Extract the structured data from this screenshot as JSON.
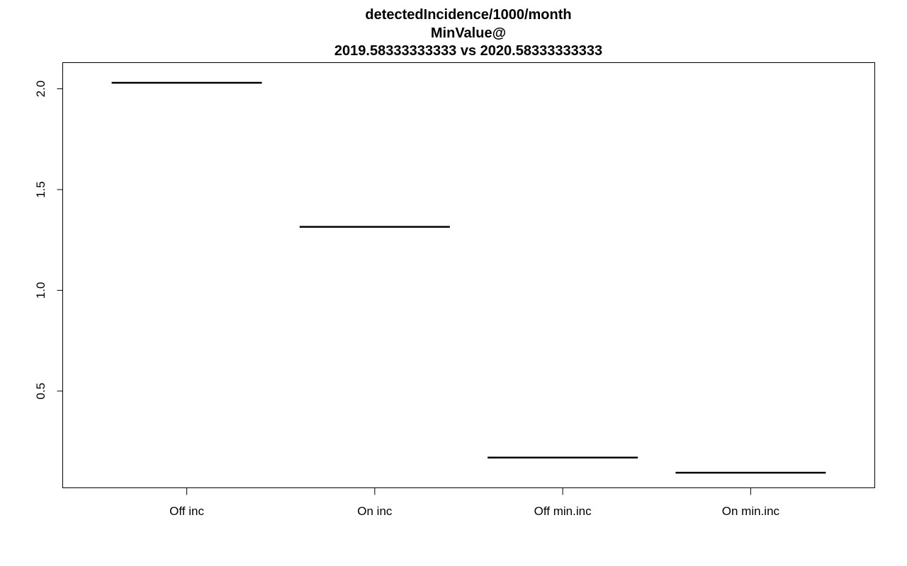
{
  "chart_data": {
    "type": "bar",
    "title_lines": [
      "detectedIncidence/1000/month",
      "MinValue@",
      "2019.58333333333 vs 2020.58333333333"
    ],
    "categories": [
      "Off inc",
      "On inc",
      "Off min.inc",
      "On min.inc"
    ],
    "values": [
      2.03,
      1.315,
      0.17,
      0.095
    ],
    "y_ticks": [
      0.5,
      1.0,
      1.5,
      2.0
    ],
    "y_tick_labels": [
      "0.5",
      "1.0",
      "1.5",
      "2.0"
    ],
    "ylim": [
      0.02,
      2.13
    ],
    "xlabel": "",
    "ylabel": "",
    "grid": false,
    "legend": "none",
    "colors": {
      "line": "#000000",
      "background": "#ffffff"
    }
  }
}
